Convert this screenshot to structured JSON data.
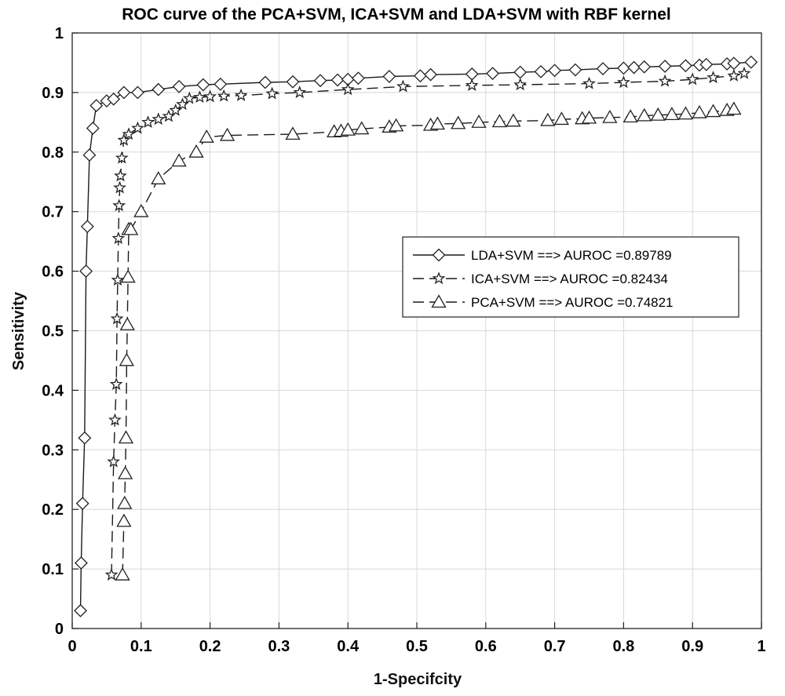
{
  "chart_data": {
    "type": "line",
    "title": "ROC curve of the PCA+SVM, ICA+SVM and LDA+SVM with RBF kernel",
    "xlabel": "1-Specifcity",
    "ylabel": "Sensitivity",
    "xlim": [
      0,
      1
    ],
    "ylim": [
      0,
      1
    ],
    "xticks": [
      0,
      0.1,
      0.2,
      0.3,
      0.4,
      0.5,
      0.6,
      0.7,
      0.8,
      0.9,
      1
    ],
    "yticks": [
      0,
      0.1,
      0.2,
      0.3,
      0.4,
      0.5,
      0.6,
      0.7,
      0.8,
      0.9,
      1
    ],
    "grid": true,
    "legend_position": "middle-right",
    "series": [
      {
        "name": "LDA+SVM ==> AUROC =0.89789",
        "marker": "diamond",
        "line": "solid",
        "x": [
          0.012,
          0.013,
          0.015,
          0.018,
          0.02,
          0.022,
          0.025,
          0.03,
          0.035,
          0.05,
          0.06,
          0.075,
          0.095,
          0.125,
          0.155,
          0.19,
          0.215,
          0.28,
          0.32,
          0.36,
          0.385,
          0.4,
          0.415,
          0.46,
          0.505,
          0.52,
          0.58,
          0.61,
          0.65,
          0.68,
          0.7,
          0.73,
          0.77,
          0.8,
          0.815,
          0.83,
          0.86,
          0.89,
          0.91,
          0.92,
          0.95,
          0.96,
          0.985
        ],
        "y": [
          0.03,
          0.11,
          0.21,
          0.32,
          0.6,
          0.675,
          0.795,
          0.84,
          0.878,
          0.886,
          0.889,
          0.9,
          0.9,
          0.905,
          0.91,
          0.913,
          0.914,
          0.917,
          0.918,
          0.92,
          0.921,
          0.922,
          0.924,
          0.927,
          0.928,
          0.93,
          0.931,
          0.932,
          0.934,
          0.935,
          0.937,
          0.938,
          0.94,
          0.941,
          0.942,
          0.943,
          0.944,
          0.945,
          0.946,
          0.947,
          0.948,
          0.949,
          0.951
        ]
      },
      {
        "name": "ICA+SVM ==> AUROC =0.82434",
        "marker": "star",
        "line": "dashed",
        "x": [
          0.057,
          0.06,
          0.062,
          0.064,
          0.065,
          0.066,
          0.067,
          0.068,
          0.069,
          0.07,
          0.072,
          0.075,
          0.082,
          0.095,
          0.11,
          0.125,
          0.14,
          0.15,
          0.16,
          0.17,
          0.185,
          0.2,
          0.22,
          0.245,
          0.29,
          0.33,
          0.4,
          0.48,
          0.58,
          0.65,
          0.75,
          0.8,
          0.86,
          0.9,
          0.93,
          0.96,
          0.975
        ],
        "y": [
          0.09,
          0.28,
          0.35,
          0.41,
          0.52,
          0.585,
          0.655,
          0.71,
          0.74,
          0.76,
          0.79,
          0.82,
          0.83,
          0.84,
          0.85,
          0.855,
          0.86,
          0.87,
          0.88,
          0.89,
          0.892,
          0.893,
          0.894,
          0.895,
          0.898,
          0.9,
          0.905,
          0.91,
          0.912,
          0.913,
          0.915,
          0.917,
          0.919,
          0.922,
          0.925,
          0.928,
          0.932
        ]
      },
      {
        "name": "PCA+SVM ==> AUROC =0.74821",
        "marker": "triangle",
        "line": "dashed",
        "x": [
          0.073,
          0.075,
          0.076,
          0.077,
          0.078,
          0.079,
          0.08,
          0.081,
          0.082,
          0.085,
          0.1,
          0.125,
          0.155,
          0.18,
          0.195,
          0.225,
          0.32,
          0.38,
          0.39,
          0.4,
          0.42,
          0.46,
          0.47,
          0.52,
          0.53,
          0.56,
          0.59,
          0.62,
          0.64,
          0.69,
          0.71,
          0.74,
          0.75,
          0.78,
          0.81,
          0.83,
          0.85,
          0.87,
          0.89,
          0.91,
          0.93,
          0.95,
          0.96
        ],
        "y": [
          0.09,
          0.18,
          0.21,
          0.26,
          0.32,
          0.45,
          0.51,
          0.59,
          0.67,
          0.67,
          0.7,
          0.755,
          0.785,
          0.8,
          0.825,
          0.828,
          0.83,
          0.834,
          0.835,
          0.837,
          0.839,
          0.842,
          0.844,
          0.845,
          0.847,
          0.848,
          0.85,
          0.851,
          0.852,
          0.853,
          0.855,
          0.856,
          0.857,
          0.858,
          0.859,
          0.861,
          0.862,
          0.863,
          0.864,
          0.866,
          0.868,
          0.87,
          0.872
        ]
      }
    ]
  }
}
